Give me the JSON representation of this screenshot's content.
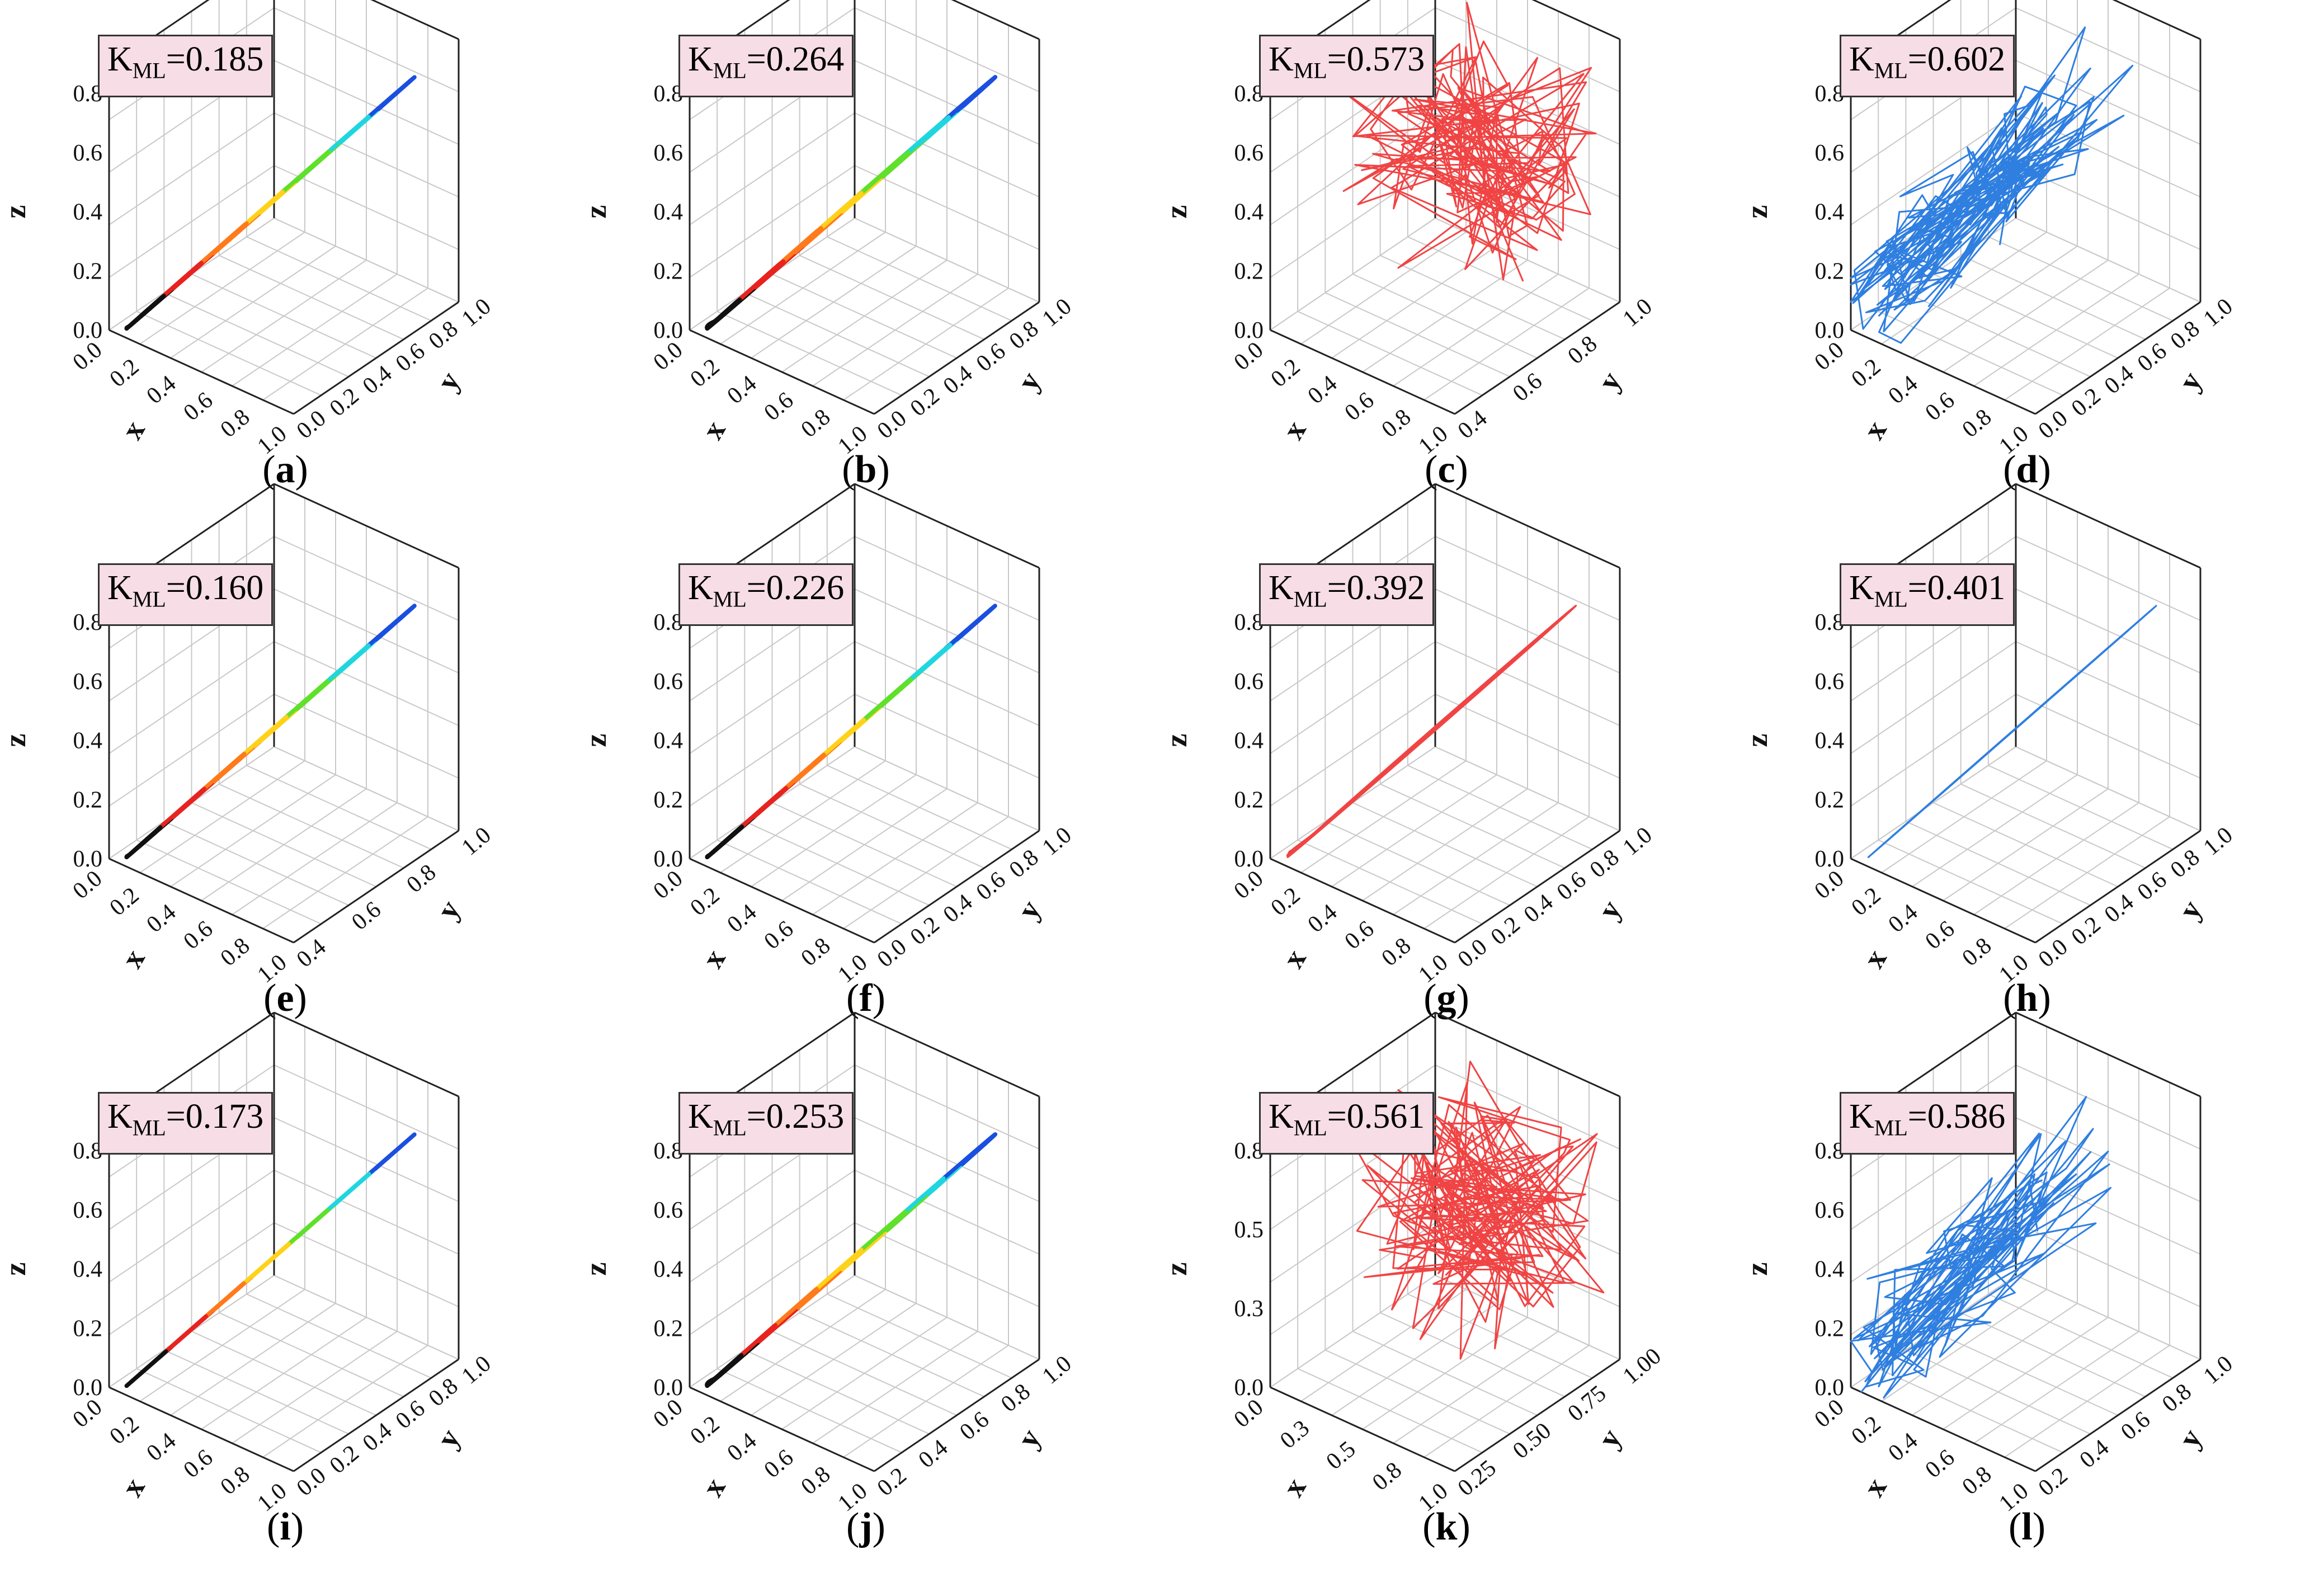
{
  "colors": {
    "spectrum": [
      "#111111",
      "#e8231f",
      "#ff7a1a",
      "#ffd21a",
      "#5fe02a",
      "#1fd6e0",
      "#1a4fe0"
    ],
    "red": "#f04444",
    "blue": "#2f7fe0",
    "box": "#f6dde6"
  },
  "chart_data": [
    {
      "type": "3d-line",
      "id": "a",
      "caption": "a",
      "kml_label": "K",
      "kml_sub": "ML",
      "kml_value": "=0.185",
      "xlabel": "x",
      "ylabel": "y",
      "zlabel": "z",
      "xticks": [
        "0.0",
        "0.2",
        "0.4",
        "0.6",
        "0.8",
        "1.0"
      ],
      "yticks": [
        "0.0",
        "0.2",
        "0.4",
        "0.6",
        "0.8",
        "1.0"
      ],
      "zticks": [
        "0.0",
        "0.2",
        "0.4",
        "0.6",
        "0.8"
      ],
      "style": "spectrum",
      "shape": "ellipse",
      "seed": 3,
      "complexity": 4
    },
    {
      "type": "3d-line",
      "id": "b",
      "caption": "b",
      "kml_label": "K",
      "kml_sub": "ML",
      "kml_value": "=0.264",
      "xlabel": "x",
      "ylabel": "y",
      "zlabel": "z",
      "xticks": [
        "0.0",
        "0.2",
        "0.4",
        "0.6",
        "0.8",
        "1.0"
      ],
      "yticks": [
        "0.0",
        "0.2",
        "0.4",
        "0.6",
        "0.8",
        "1.0"
      ],
      "zticks": [
        "0.0",
        "0.2",
        "0.4",
        "0.6",
        "0.8"
      ],
      "style": "spectrum",
      "shape": "wide",
      "seed": 7,
      "complexity": 6
    },
    {
      "type": "3d-line",
      "id": "c",
      "caption": "c",
      "kml_label": "K",
      "kml_sub": "ML",
      "kml_value": "=0.573",
      "xlabel": "x",
      "ylabel": "y",
      "zlabel": "z",
      "xticks": [
        "0.0",
        "0.2",
        "0.4",
        "0.6",
        "0.8",
        "1.0"
      ],
      "yticks": [
        "0.4",
        "0.6",
        "0.8",
        "1.0"
      ],
      "zticks": [
        "0.0",
        "0.2",
        "0.4",
        "0.6",
        "0.8"
      ],
      "style": "red",
      "shape": "chaos",
      "seed": 11,
      "complexity": 160
    },
    {
      "type": "3d-line",
      "id": "d",
      "caption": "d",
      "kml_label": "K",
      "kml_sub": "ML",
      "kml_value": "=0.602",
      "xlabel": "x",
      "ylabel": "y",
      "zlabel": "z",
      "xticks": [
        "0.0",
        "0.2",
        "0.4",
        "0.6",
        "0.8",
        "1.0"
      ],
      "yticks": [
        "0.0",
        "0.2",
        "0.4",
        "0.6",
        "0.8",
        "1.0"
      ],
      "zticks": [
        "0.0",
        "0.2",
        "0.4",
        "0.6",
        "0.8"
      ],
      "style": "blue",
      "shape": "blob",
      "seed": 13,
      "complexity": 140
    },
    {
      "type": "3d-line",
      "id": "e",
      "caption": "e",
      "kml_label": "K",
      "kml_sub": "ML",
      "kml_value": "=0.160",
      "xlabel": "x",
      "ylabel": "y",
      "zlabel": "z",
      "xticks": [
        "0.0",
        "0.2",
        "0.4",
        "0.6",
        "0.8",
        "1.0"
      ],
      "yticks": [
        "0.4",
        "0.6",
        "0.8",
        "1.0"
      ],
      "zticks": [
        "0.0",
        "0.2",
        "0.4",
        "0.6",
        "0.8"
      ],
      "style": "spectrum",
      "shape": "ellipse",
      "seed": 17,
      "complexity": 5
    },
    {
      "type": "3d-line",
      "id": "f",
      "caption": "f",
      "kml_label": "K",
      "kml_sub": "ML",
      "kml_value": "=0.226",
      "xlabel": "x",
      "ylabel": "y",
      "zlabel": "z",
      "xticks": [
        "0.0",
        "0.2",
        "0.4",
        "0.6",
        "0.8",
        "1.0"
      ],
      "yticks": [
        "0.0",
        "0.2",
        "0.4",
        "0.6",
        "0.8",
        "1.0"
      ],
      "zticks": [
        "0.0",
        "0.2",
        "0.4",
        "0.6",
        "0.8"
      ],
      "style": "spectrum",
      "shape": "ellipse",
      "seed": 19,
      "complexity": 6
    },
    {
      "type": "3d-line",
      "id": "g",
      "caption": "g",
      "kml_label": "K",
      "kml_sub": "ML",
      "kml_value": "=0.392",
      "xlabel": "x",
      "ylabel": "y",
      "zlabel": "z",
      "xticks": [
        "0.0",
        "0.2",
        "0.4",
        "0.6",
        "0.8",
        "1.0"
      ],
      "yticks": [
        "0.0",
        "0.2",
        "0.4",
        "0.6",
        "0.8",
        "1.0"
      ],
      "zticks": [
        "0.0",
        "0.2",
        "0.4",
        "0.6",
        "0.8"
      ],
      "style": "red",
      "shape": "loops",
      "seed": 23,
      "complexity": 40
    },
    {
      "type": "3d-line",
      "id": "h",
      "caption": "h",
      "kml_label": "K",
      "kml_sub": "ML",
      "kml_value": "=0.401",
      "xlabel": "x",
      "ylabel": "y",
      "zlabel": "z",
      "xticks": [
        "0.0",
        "0.2",
        "0.4",
        "0.6",
        "0.8",
        "1.0"
      ],
      "yticks": [
        "0.0",
        "0.2",
        "0.4",
        "0.6",
        "0.8",
        "1.0"
      ],
      "zticks": [
        "0.0",
        "0.2",
        "0.4",
        "0.6",
        "0.8"
      ],
      "style": "blue",
      "shape": "thin",
      "seed": 29,
      "complexity": 6
    },
    {
      "type": "3d-line",
      "id": "i",
      "caption": "i",
      "kml_label": "K",
      "kml_sub": "ML",
      "kml_value": "=0.173",
      "xlabel": "x",
      "ylabel": "y",
      "zlabel": "z",
      "xticks": [
        "0.0",
        "0.2",
        "0.4",
        "0.6",
        "0.8",
        "1.0"
      ],
      "yticks": [
        "0.0",
        "0.2",
        "0.4",
        "0.6",
        "0.8",
        "1.0"
      ],
      "zticks": [
        "0.0",
        "0.2",
        "0.4",
        "0.6",
        "0.8"
      ],
      "style": "spectrum",
      "shape": "thin",
      "seed": 31,
      "complexity": 3
    },
    {
      "type": "3d-line",
      "id": "j",
      "caption": "j",
      "kml_label": "K",
      "kml_sub": "ML",
      "kml_value": "=0.253",
      "xlabel": "x",
      "ylabel": "y",
      "zlabel": "z",
      "xticks": [
        "0.0",
        "0.2",
        "0.4",
        "0.6",
        "0.8",
        "1.0"
      ],
      "yticks": [
        "0.2",
        "0.4",
        "0.6",
        "0.8",
        "1.0"
      ],
      "zticks": [
        "0.0",
        "0.2",
        "0.4",
        "0.6",
        "0.8"
      ],
      "style": "spectrum",
      "shape": "wide",
      "seed": 37,
      "complexity": 7
    },
    {
      "type": "3d-line",
      "id": "k",
      "caption": "k",
      "kml_label": "K",
      "kml_sub": "ML",
      "kml_value": "=0.561",
      "xlabel": "x",
      "ylabel": "y",
      "zlabel": "z",
      "xticks": [
        "0.0",
        "0.3",
        "0.5",
        "0.8",
        "1.0"
      ],
      "yticks": [
        "0.25",
        "0.50",
        "0.75",
        "1.00"
      ],
      "zticks": [
        "0.0",
        "0.3",
        "0.5",
        "0.8"
      ],
      "style": "red",
      "shape": "chaos",
      "seed": 41,
      "complexity": 180
    },
    {
      "type": "3d-line",
      "id": "l",
      "caption": "l",
      "kml_label": "K",
      "kml_sub": "ML",
      "kml_value": "=0.586",
      "xlabel": "x",
      "ylabel": "y",
      "zlabel": "z",
      "xticks": [
        "0.0",
        "0.2",
        "0.4",
        "0.6",
        "0.8",
        "1.0"
      ],
      "yticks": [
        "0.2",
        "0.4",
        "0.6",
        "0.8",
        "1.0"
      ],
      "zticks": [
        "0.0",
        "0.2",
        "0.4",
        "0.6",
        "0.8"
      ],
      "style": "blue",
      "shape": "blob",
      "seed": 43,
      "complexity": 110
    }
  ]
}
